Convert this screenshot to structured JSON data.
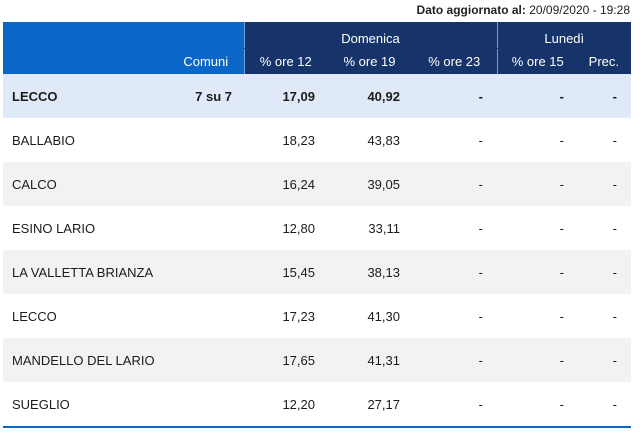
{
  "updated_label": "Dato aggiornato al:",
  "updated_value": "20/09/2020 - 19:28",
  "header": {
    "group_sunday": "Domenica",
    "group_monday": "Lunedì",
    "col_comuni": "Comuni",
    "col_ore12": "% ore 12",
    "col_ore19": "% ore 19",
    "col_ore23": "% ore 23",
    "col_ore15": "% ore 15",
    "col_prec": "Prec."
  },
  "total": {
    "name": "LECCO",
    "comuni": "7 su 7",
    "ore12": "17,09",
    "ore19": "40,92",
    "ore23": "-",
    "ore15": "-",
    "prec": "-"
  },
  "rows": [
    {
      "name": "BALLABIO",
      "comuni": "",
      "ore12": "18,23",
      "ore19": "43,83",
      "ore23": "-",
      "ore15": "-",
      "prec": "-"
    },
    {
      "name": "CALCO",
      "comuni": "",
      "ore12": "16,24",
      "ore19": "39,05",
      "ore23": "-",
      "ore15": "-",
      "prec": "-"
    },
    {
      "name": "ESINO LARIO",
      "comuni": "",
      "ore12": "12,80",
      "ore19": "33,11",
      "ore23": "-",
      "ore15": "-",
      "prec": "-"
    },
    {
      "name": "LA VALLETTA BRIANZA",
      "comuni": "",
      "ore12": "15,45",
      "ore19": "38,13",
      "ore23": "-",
      "ore15": "-",
      "prec": "-"
    },
    {
      "name": "LECCO",
      "comuni": "",
      "ore12": "17,23",
      "ore19": "41,30",
      "ore23": "-",
      "ore15": "-",
      "prec": "-"
    },
    {
      "name": "MANDELLO DEL LARIO",
      "comuni": "",
      "ore12": "17,65",
      "ore19": "41,31",
      "ore23": "-",
      "ore15": "-",
      "prec": "-"
    },
    {
      "name": "SUEGLIO",
      "comuni": "",
      "ore12": "12,20",
      "ore19": "27,17",
      "ore23": "-",
      "ore15": "-",
      "prec": "-"
    }
  ]
}
